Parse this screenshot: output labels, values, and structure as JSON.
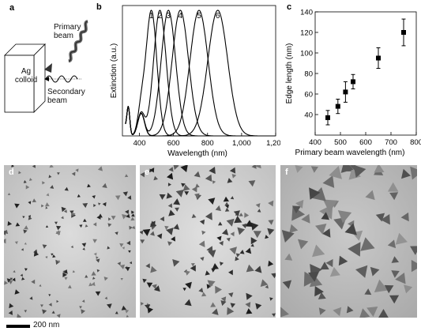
{
  "panels": {
    "a": {
      "letter": "a",
      "box_label_1": "Ag",
      "box_label_2": "colloid",
      "primary_1": "Primary",
      "primary_2": "beam",
      "secondary_1": "Secondary",
      "secondary_2": "beam"
    },
    "b": {
      "letter": "b"
    },
    "c": {
      "letter": "c"
    },
    "d": {
      "letter": "d"
    },
    "e": {
      "letter": "e"
    },
    "f": {
      "letter": "f"
    }
  },
  "scale_bar": {
    "label": "200 nm"
  },
  "chart_data": [
    {
      "type": "line",
      "xlabel": "Wavelength (nm)",
      "ylabel": "Extinction (a.u.)",
      "xlim": [
        300,
        1200
      ],
      "xticks": [
        400,
        600,
        800,
        "1,000",
        "1,200"
      ],
      "ylim": [
        0,
        1
      ],
      "series": [
        {
          "name": "1",
          "peak": 470,
          "width": 45
        },
        {
          "name": "2",
          "peak": 520,
          "width": 52
        },
        {
          "name": "3",
          "peak": 570,
          "width": 60
        },
        {
          "name": "4",
          "peak": 640,
          "width": 68
        },
        {
          "name": "5",
          "peak": 750,
          "width": 75
        },
        {
          "name": "6",
          "peak": 860,
          "width": 82
        }
      ],
      "shoulders": [
        335,
        410
      ],
      "grid": false
    },
    {
      "type": "scatter",
      "xlabel": "Primary beam wavelength (nm)",
      "ylabel": "Edge length (nm)",
      "xlim": [
        400,
        800
      ],
      "ylim": [
        20,
        140
      ],
      "xticks": [
        400,
        500,
        600,
        700,
        800
      ],
      "yticks": [
        40,
        60,
        80,
        100,
        120,
        140
      ],
      "points": [
        {
          "x": 450,
          "y": 37,
          "err": 7
        },
        {
          "x": 490,
          "y": 48,
          "err": 7
        },
        {
          "x": 520,
          "y": 62,
          "err": 10
        },
        {
          "x": 550,
          "y": 72,
          "err": 7
        },
        {
          "x": 650,
          "y": 95,
          "err": 10
        },
        {
          "x": 750,
          "y": 120,
          "err": 13
        }
      ],
      "grid": false
    }
  ]
}
